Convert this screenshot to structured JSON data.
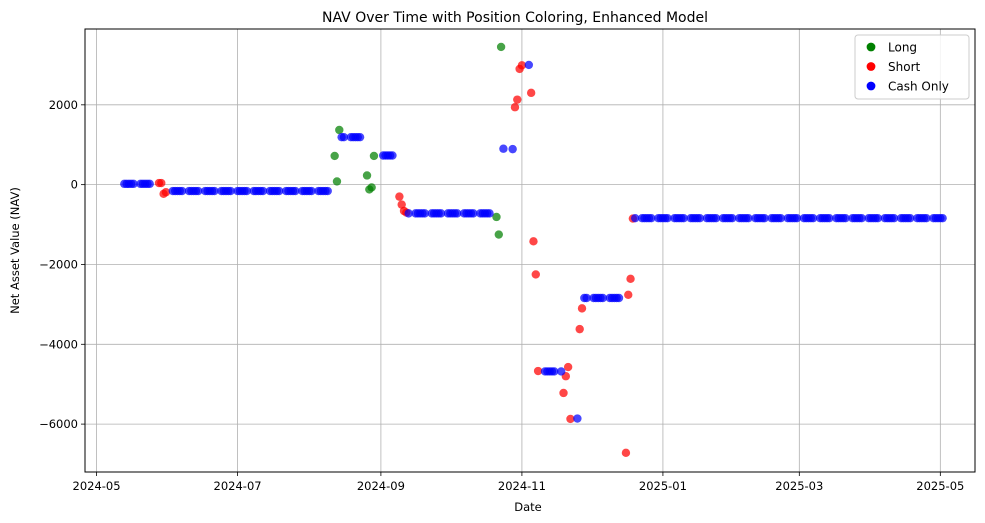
{
  "chart_data": {
    "type": "scatter",
    "title": "NAV Over Time with Position Coloring, Enhanced Model",
    "xlabel": "Date",
    "ylabel": "Net Asset Value (NAV)",
    "xlim": [
      "2024-04-26",
      "2025-05-16"
    ],
    "ylim": [
      -7200,
      3900
    ],
    "x_ticks": [
      "2024-05-01",
      "2024-07-01",
      "2024-09-01",
      "2024-11-01",
      "2025-01-01",
      "2025-03-01",
      "2025-05-01"
    ],
    "x_tick_labels": [
      "2024-05",
      "2024-07",
      "2024-09",
      "2024-11",
      "2025-01",
      "2025-03",
      "2025-05"
    ],
    "y_ticks": [
      -6000,
      -4000,
      -2000,
      0,
      2000
    ],
    "y_tick_labels": [
      "−6000",
      "−4000",
      "−2000",
      "0",
      "2000"
    ],
    "grid": true,
    "legend_position": "top-right",
    "series": [
      {
        "name": "Long",
        "color": "#008000",
        "points": [
          [
            "2024-08-12",
            720
          ],
          [
            "2024-08-13",
            80
          ],
          [
            "2024-08-14",
            1370
          ],
          [
            "2024-08-26",
            230
          ],
          [
            "2024-08-27",
            -120
          ],
          [
            "2024-08-28",
            -70
          ],
          [
            "2024-08-29",
            720
          ],
          [
            "2024-10-21",
            -810
          ],
          [
            "2024-10-22",
            -1250
          ],
          [
            "2024-10-23",
            3450
          ]
        ]
      },
      {
        "name": "Short",
        "color": "#ff0000",
        "points": [
          [
            "2024-05-28",
            40
          ],
          [
            "2024-05-29",
            40
          ],
          [
            "2024-05-30",
            -230
          ],
          [
            "2024-05-31",
            -190
          ],
          [
            "2024-09-09",
            -300
          ],
          [
            "2024-09-10",
            -500
          ],
          [
            "2024-09-11",
            -660
          ],
          [
            "2024-09-12",
            -700
          ],
          [
            "2024-10-29",
            1940
          ],
          [
            "2024-10-30",
            2130
          ],
          [
            "2024-10-31",
            2900
          ],
          [
            "2024-11-01",
            2990
          ],
          [
            "2024-11-05",
            2300
          ],
          [
            "2024-11-06",
            -1420
          ],
          [
            "2024-11-07",
            -2250
          ],
          [
            "2024-11-08",
            -4670
          ],
          [
            "2024-11-19",
            -5220
          ],
          [
            "2024-11-20",
            -4800
          ],
          [
            "2024-11-21",
            -4570
          ],
          [
            "2024-11-22",
            -5870
          ],
          [
            "2024-11-26",
            -3620
          ],
          [
            "2024-11-27",
            -3100
          ],
          [
            "2024-12-16",
            -6720
          ],
          [
            "2024-12-17",
            -2760
          ],
          [
            "2024-12-18",
            -2360
          ],
          [
            "2024-12-19",
            -850
          ]
        ]
      },
      {
        "name": "Cash Only",
        "color": "#0000ff",
        "segments": [
          {
            "start": "2024-05-13",
            "end": "2024-05-24",
            "value": 20,
            "step": 1
          },
          {
            "start": "2024-06-03",
            "end": "2024-08-09",
            "value": -160,
            "step": 1
          },
          {
            "start": "2024-08-15",
            "end": "2024-08-23",
            "value": 1190,
            "step": 1
          },
          {
            "start": "2024-09-02",
            "end": "2024-09-06",
            "value": 730,
            "step": 1
          },
          {
            "start": "2024-09-13",
            "end": "2024-10-18",
            "value": -720,
            "step": 1
          },
          {
            "start": "2024-11-11",
            "end": "2024-11-18",
            "value": -4680,
            "step": 1
          },
          {
            "start": "2024-11-28",
            "end": "2024-12-13",
            "value": -2840,
            "step": 1
          },
          {
            "start": "2024-12-20",
            "end": "2025-05-02",
            "value": -840,
            "step": 1
          }
        ],
        "points": [
          [
            "2024-10-24",
            900
          ],
          [
            "2024-10-28",
            890
          ],
          [
            "2024-11-04",
            3000
          ],
          [
            "2024-11-25",
            -5860
          ]
        ]
      }
    ]
  }
}
